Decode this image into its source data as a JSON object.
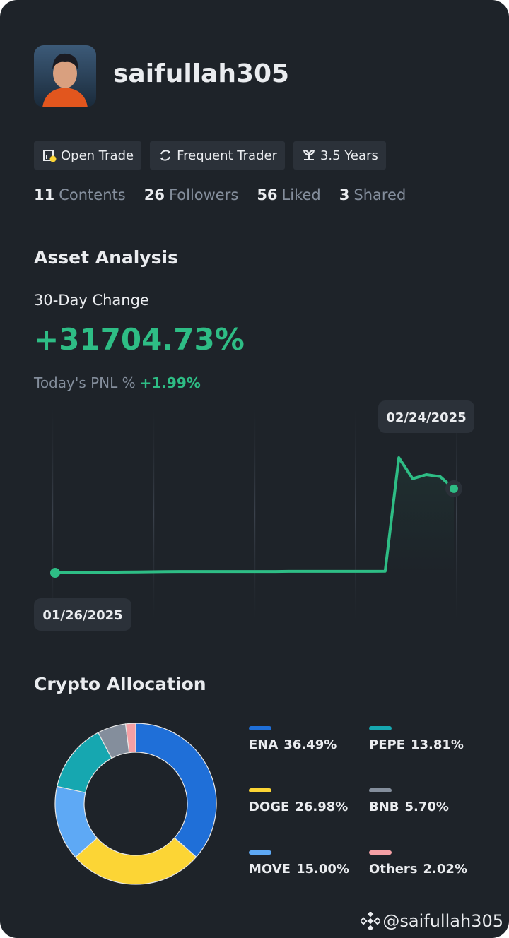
{
  "profile": {
    "username": "saifullah305"
  },
  "badges": [
    "Open Trade",
    "Frequent Trader",
    "3.5 Years"
  ],
  "stats": [
    {
      "value": 11,
      "label": "Contents"
    },
    {
      "value": 26,
      "label": "Followers"
    },
    {
      "value": 56,
      "label": "Liked"
    },
    {
      "value": 3,
      "label": "Shared"
    }
  ],
  "asset_analysis": {
    "title": "Asset Analysis",
    "change_label": "30-Day Change",
    "change_value": "+31704.73%",
    "pnl_label": "Today's PNL %",
    "pnl_value": "+1.99%",
    "chart": {
      "type": "line",
      "color": "#2ebd85",
      "categories": [
        "01/26/2025",
        null,
        null,
        null,
        null,
        null,
        null,
        null,
        null,
        null,
        null,
        null,
        null,
        null,
        null,
        null,
        null,
        null,
        null,
        null,
        null,
        null,
        null,
        null,
        null,
        null,
        null,
        null,
        null,
        "02/24/2025"
      ],
      "values": [
        0,
        100,
        150,
        200,
        250,
        300,
        350,
        400,
        450,
        500,
        500,
        500,
        500,
        500,
        500,
        500,
        500,
        550,
        550,
        550,
        550,
        550,
        550,
        550,
        600,
        43400,
        35500,
        37000,
        36300,
        31704.73
      ]
    }
  },
  "allocation": {
    "title": "Crypto Allocation",
    "chart": {
      "type": "pie",
      "categories": [
        "ENA",
        "DOGE",
        "MOVE",
        "PEPE",
        "BNB",
        "Others"
      ],
      "values": [
        36.49,
        26.98,
        15.0,
        13.81,
        5.7,
        2.02
      ],
      "value_labels": [
        "36.49%",
        "26.98%",
        "15.00%",
        "13.81%",
        "5.70%",
        "2.02%"
      ],
      "colors": [
        "#1f6fd8",
        "#fcd535",
        "#5ea9f5",
        "#16a7b0",
        "#848e9c",
        "#f5a0a5"
      ]
    }
  },
  "footer": "@saifullah305"
}
